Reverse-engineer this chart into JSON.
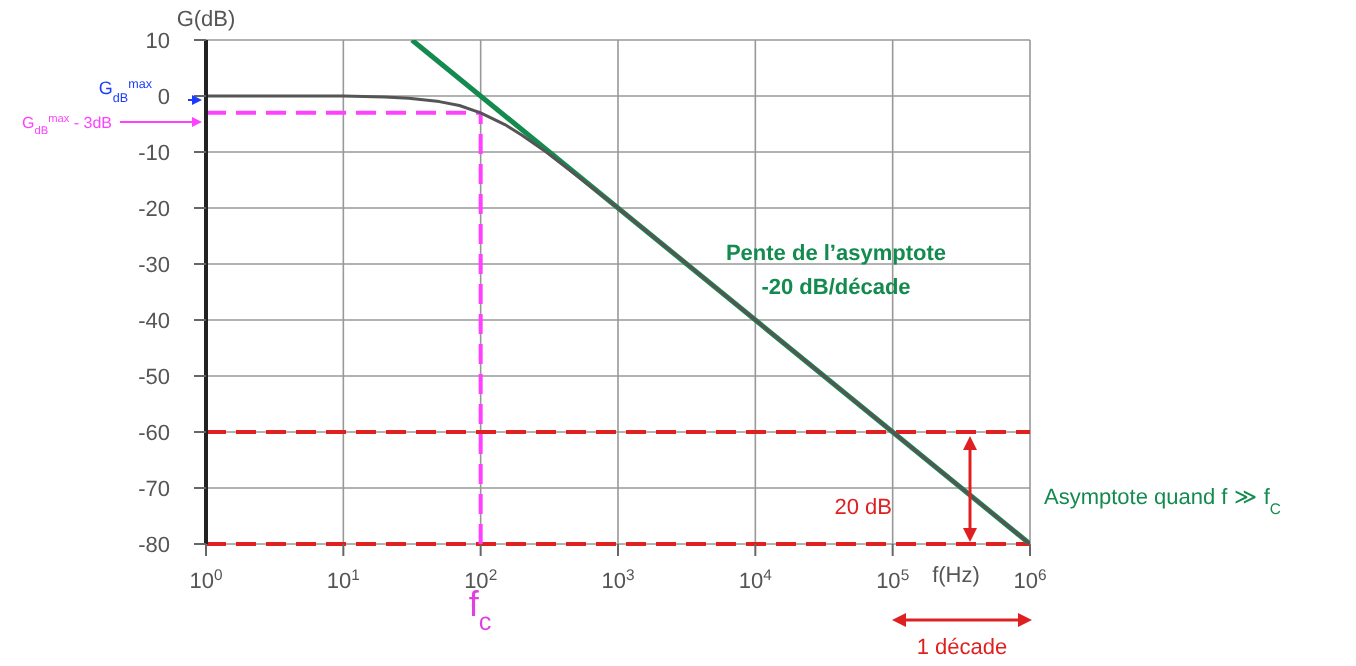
{
  "chart_data": {
    "type": "line",
    "xlabel": "f(Hz)",
    "ylabel": "G(dB)",
    "log": "x",
    "xlim": [
      1,
      1000000
    ],
    "xticks": [
      {
        "value": 1,
        "label": "10$^{0}$"
      },
      {
        "value": 10,
        "label": "10$^{1}$"
      },
      {
        "value": 100,
        "label": "10$^{2}$"
      },
      {
        "value": 1000,
        "label": "10$^{3}$"
      },
      {
        "value": 10000,
        "label": "10$^{4}$"
      },
      {
        "value": 100000,
        "label": "10$^{5}$"
      },
      {
        "value": 1000000,
        "label": "10$^{6}$"
      }
    ],
    "ylim": [
      -80,
      10
    ],
    "yticks": [
      -80,
      -70,
      -60,
      -50,
      -40,
      -30,
      -20,
      -10,
      0,
      10
    ],
    "grid": true,
    "series": [
      {
        "type": "line",
        "color": "#555555",
        "x": [
          1,
          3,
          10,
          20,
          30,
          50,
          70,
          100,
          150,
          200,
          300,
          500,
          1000,
          3000,
          10000,
          100000,
          1000000
        ],
        "values": [
          0,
          0,
          0,
          -0.2,
          -0.4,
          -1,
          -1.7,
          -3,
          -5.1,
          -7,
          -10,
          -14.2,
          -20,
          -29.5,
          -40,
          -60,
          -80
        ]
      },
      {
        "type": "line",
        "color": "#138a4e",
        "x": [
          31.6,
          1000000
        ],
        "values": [
          10,
          -80
        ]
      }
    ],
    "ref_lines": [
      {
        "axis": "y",
        "value": -60,
        "color": "#e02020",
        "line_style": "dashed"
      },
      {
        "axis": "y",
        "value": -80,
        "color": "#e02020",
        "line_style": "dashed"
      },
      {
        "axis": "y",
        "value": -3,
        "color": "#ff40ff",
        "line_style": "dashed"
      },
      {
        "axis": "x",
        "value": 100,
        "color": "#ff40ff",
        "line_style": "dashed"
      }
    ],
    "annotations": [
      "G$_{dB}$$^{max}$",
      "G$_{dB}$$^{max}$ - 3dB",
      "f$_{c}$",
      "Pente de l’asymptote",
      "-20 dB/décade",
      "Asymptote quand f ≫ f$_{C}$",
      "20 dB",
      "1 décade"
    ]
  }
}
